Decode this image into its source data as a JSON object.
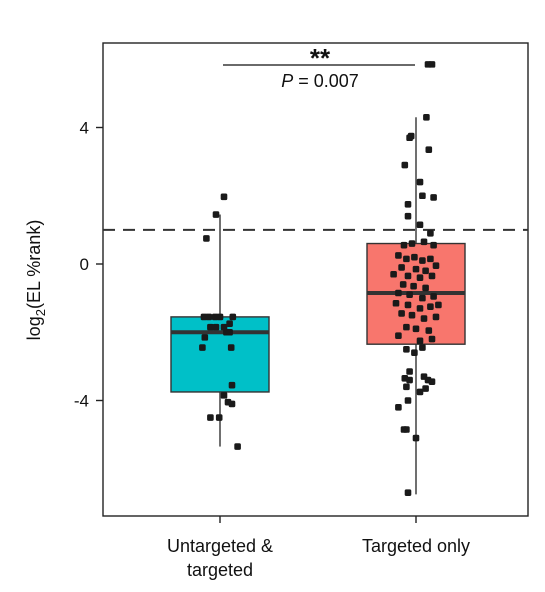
{
  "chart_data": {
    "type": "box",
    "ylabel_main": "log",
    "ylabel_sub": "2",
    "ylabel_rest": "(EL %rank)",
    "ylim": [
      -7.4,
      6.2
    ],
    "yticks": [
      {
        "value": 4,
        "label": "4"
      },
      {
        "value": 0,
        "label": "0"
      },
      {
        "value": -4,
        "label": "-4"
      }
    ],
    "threshold_line": {
      "value": 1.0,
      "style": "dashed"
    },
    "categories": [
      "Untargeted & targeted",
      "Targeted only"
    ],
    "category_lines": [
      [
        "Untargeted &",
        "targeted"
      ],
      [
        "Targeted only"
      ]
    ],
    "boxes": [
      {
        "name": "Untargeted & targeted",
        "color": "#00C0C8",
        "whisker_low": -5.35,
        "q1": -3.75,
        "median": -2.0,
        "q3": -1.55,
        "whisker_high": 1.45,
        "points": [
          [
            0.05,
            1.97
          ],
          [
            -0.05,
            1.45
          ],
          [
            -0.17,
            0.75
          ],
          [
            -0.2,
            -1.55
          ],
          [
            -0.14,
            -1.55
          ],
          [
            -0.06,
            -1.55
          ],
          [
            0.0,
            -1.55
          ],
          [
            -0.12,
            -1.85
          ],
          [
            -0.05,
            -1.85
          ],
          [
            0.05,
            -1.85
          ],
          [
            0.12,
            -1.75
          ],
          [
            0.16,
            -1.55
          ],
          [
            -0.19,
            -2.15
          ],
          [
            0.08,
            -2.0
          ],
          [
            0.12,
            -2.0
          ],
          [
            0.14,
            -2.45
          ],
          [
            -0.22,
            -2.45
          ],
          [
            0.15,
            -3.55
          ],
          [
            0.05,
            -3.85
          ],
          [
            0.1,
            -4.05
          ],
          [
            0.15,
            -4.1
          ],
          [
            -0.12,
            -4.5
          ],
          [
            -0.01,
            -4.5
          ],
          [
            0.22,
            -5.35
          ]
        ]
      },
      {
        "name": "Targeted only",
        "color": "#F8766D",
        "whisker_low": -6.75,
        "q1": -2.35,
        "median": -0.85,
        "q3": 0.6,
        "whisker_high": 4.3,
        "points": [
          [
            0.15,
            5.85
          ],
          [
            0.2,
            5.85
          ],
          [
            0.13,
            4.3
          ],
          [
            -0.06,
            3.75
          ],
          [
            -0.08,
            3.7
          ],
          [
            0.16,
            3.35
          ],
          [
            -0.14,
            2.9
          ],
          [
            0.05,
            2.4
          ],
          [
            0.08,
            2.0
          ],
          [
            0.22,
            1.95
          ],
          [
            -0.1,
            1.75
          ],
          [
            -0.1,
            1.4
          ],
          [
            0.05,
            1.15
          ],
          [
            0.18,
            0.9
          ],
          [
            -0.15,
            0.55
          ],
          [
            -0.05,
            0.6
          ],
          [
            0.1,
            0.65
          ],
          [
            0.22,
            0.55
          ],
          [
            -0.22,
            0.25
          ],
          [
            -0.12,
            0.15
          ],
          [
            -0.02,
            0.2
          ],
          [
            0.08,
            0.1
          ],
          [
            0.18,
            0.15
          ],
          [
            -0.18,
            -0.1
          ],
          [
            0.0,
            -0.15
          ],
          [
            0.12,
            -0.2
          ],
          [
            0.25,
            -0.05
          ],
          [
            -0.28,
            -0.3
          ],
          [
            -0.1,
            -0.35
          ],
          [
            0.05,
            -0.4
          ],
          [
            0.2,
            -0.35
          ],
          [
            -0.16,
            -0.6
          ],
          [
            -0.03,
            -0.65
          ],
          [
            0.12,
            -0.7
          ],
          [
            -0.22,
            -0.85
          ],
          [
            -0.08,
            -0.9
          ],
          [
            0.08,
            -1.0
          ],
          [
            0.22,
            -0.95
          ],
          [
            -0.25,
            -1.15
          ],
          [
            -0.1,
            -1.2
          ],
          [
            0.05,
            -1.3
          ],
          [
            0.18,
            -1.25
          ],
          [
            0.28,
            -1.2
          ],
          [
            -0.18,
            -1.45
          ],
          [
            -0.05,
            -1.5
          ],
          [
            0.1,
            -1.6
          ],
          [
            0.25,
            -1.55
          ],
          [
            -0.12,
            -1.85
          ],
          [
            0.0,
            -1.9
          ],
          [
            0.16,
            -1.95
          ],
          [
            -0.22,
            -2.1
          ],
          [
            0.05,
            -2.25
          ],
          [
            0.2,
            -2.2
          ],
          [
            0.08,
            -2.45
          ],
          [
            -0.12,
            -2.5
          ],
          [
            -0.02,
            -2.6
          ],
          [
            -0.08,
            -3.15
          ],
          [
            0.1,
            -3.3
          ],
          [
            0.15,
            -3.4
          ],
          [
            0.2,
            -3.45
          ],
          [
            -0.14,
            -3.35
          ],
          [
            -0.08,
            -3.4
          ],
          [
            -0.12,
            -3.6
          ],
          [
            0.05,
            -3.75
          ],
          [
            0.12,
            -3.65
          ],
          [
            -0.22,
            -4.2
          ],
          [
            -0.1,
            -4.0
          ],
          [
            -0.15,
            -4.85
          ],
          [
            -0.12,
            -4.85
          ],
          [
            0.0,
            -5.1
          ],
          [
            -0.1,
            -6.7
          ]
        ]
      }
    ],
    "significance": {
      "stars": "**",
      "p_italic": "P",
      "p_rest": " = 0.007"
    }
  }
}
